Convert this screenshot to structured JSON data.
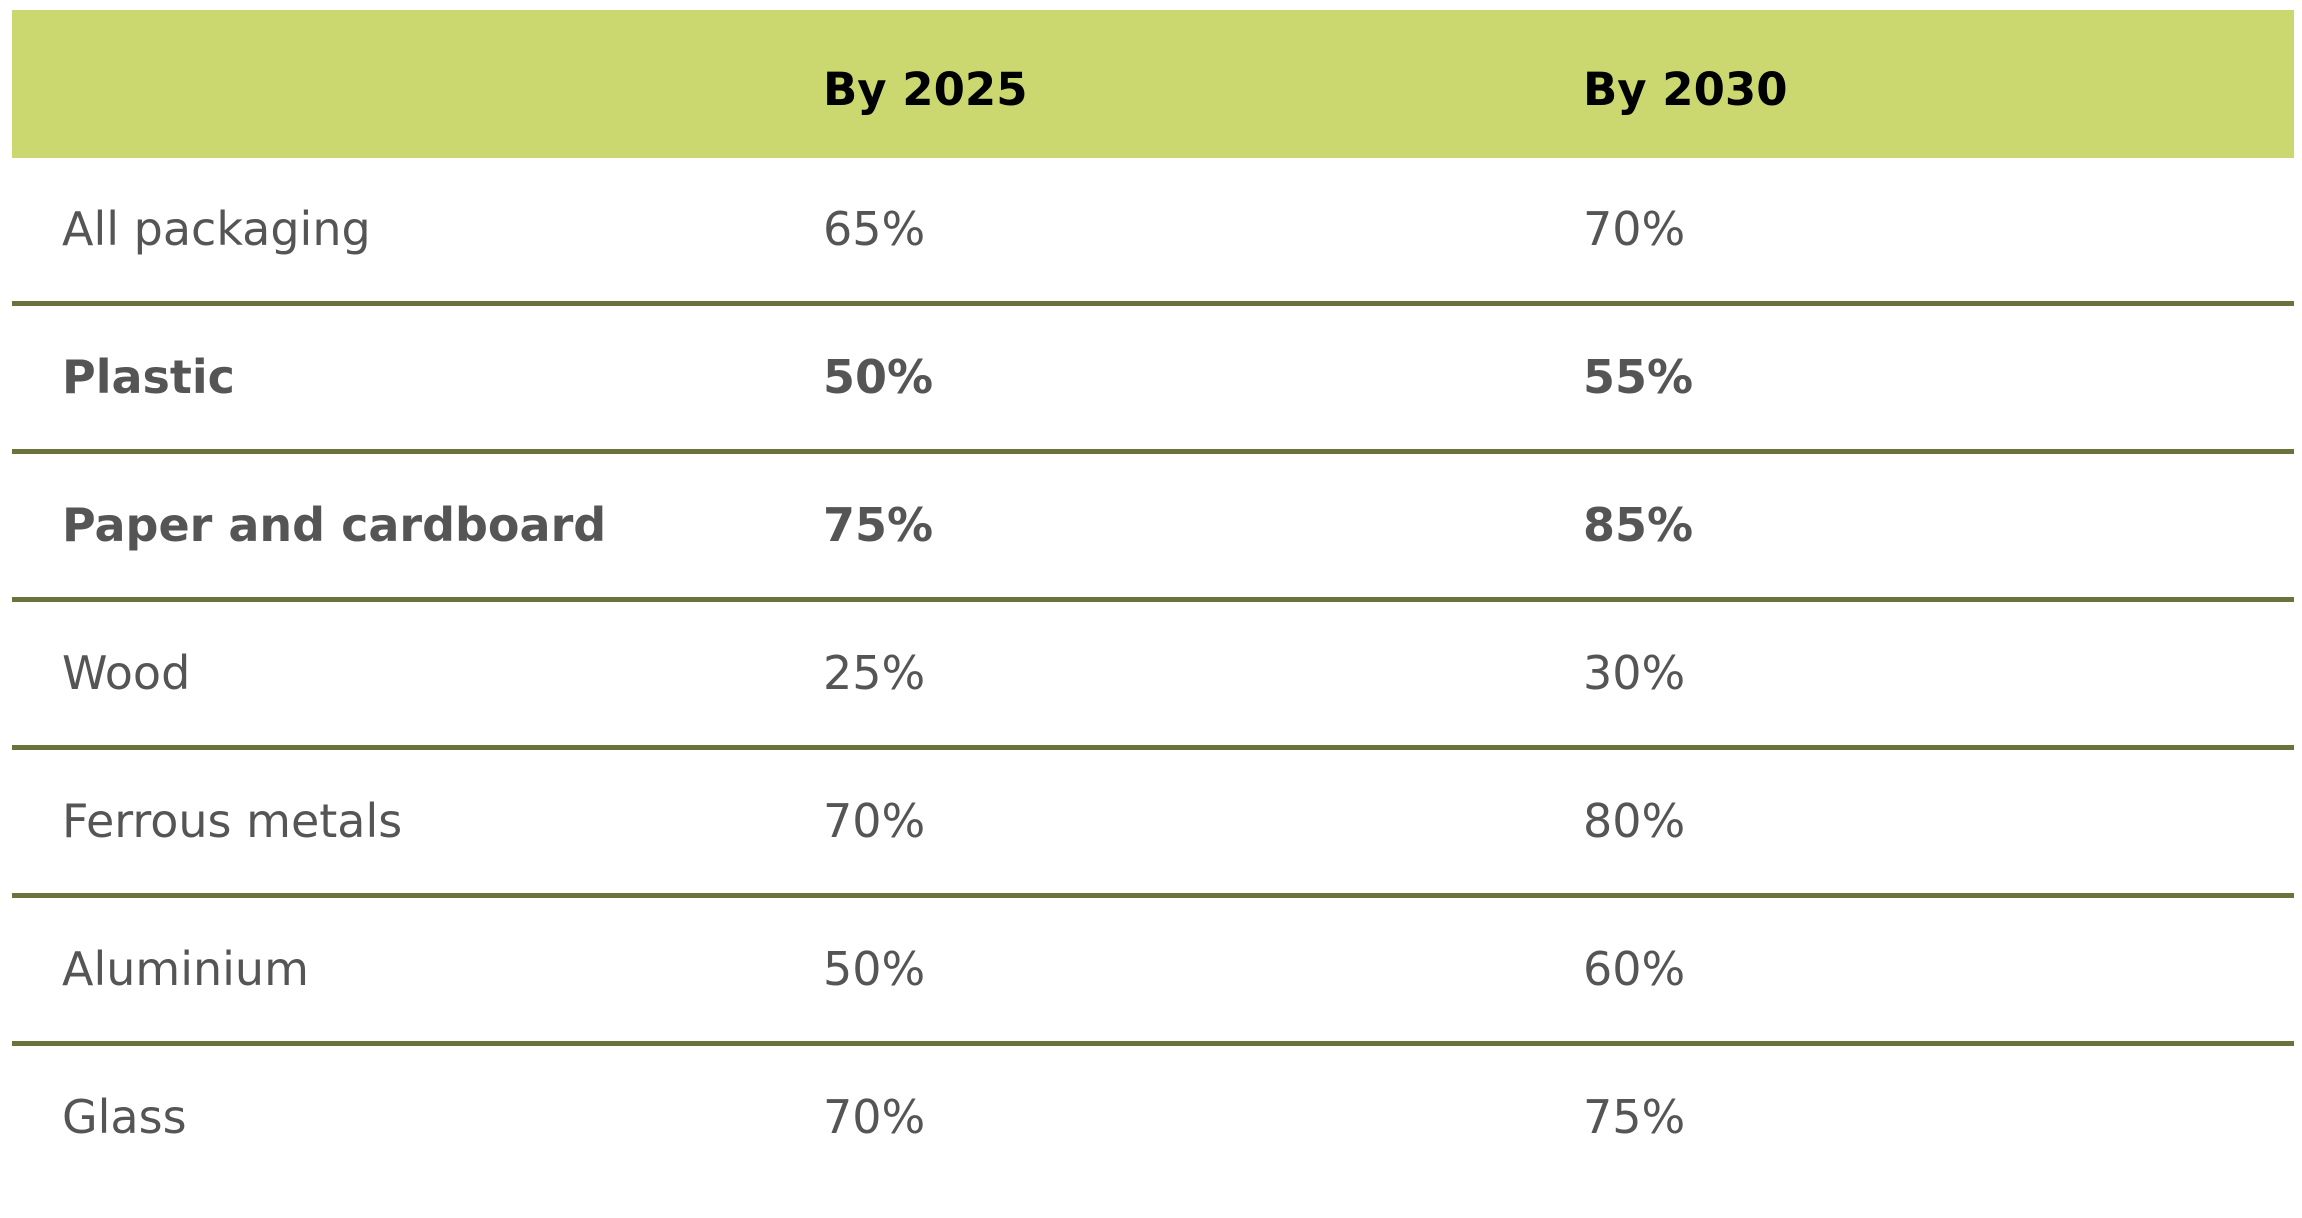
{
  "table": {
    "headers": [
      "",
      "By 2025",
      "By 2030"
    ],
    "rows": [
      {
        "material": "All packaging",
        "by_2025": "65%",
        "by_2030": "70%",
        "bold": false
      },
      {
        "material": "Plastic",
        "by_2025": "50%",
        "by_2030": "55%",
        "bold": true
      },
      {
        "material": "Paper and cardboard",
        "by_2025": "75%",
        "by_2030": "85%",
        "bold": true
      },
      {
        "material": "Wood",
        "by_2025": "25%",
        "by_2030": "30%",
        "bold": false
      },
      {
        "material": "Ferrous metals",
        "by_2025": "70%",
        "by_2030": "80%",
        "bold": false
      },
      {
        "material": "Aluminium",
        "by_2025": "50%",
        "by_2030": "60%",
        "bold": false
      },
      {
        "material": "Glass",
        "by_2025": "70%",
        "by_2030": "75%",
        "bold": false
      }
    ]
  },
  "colors": {
    "header_background": "#cbd870",
    "row_divider": "#6b723b",
    "body_text": "#555555",
    "header_text": "#000000"
  }
}
